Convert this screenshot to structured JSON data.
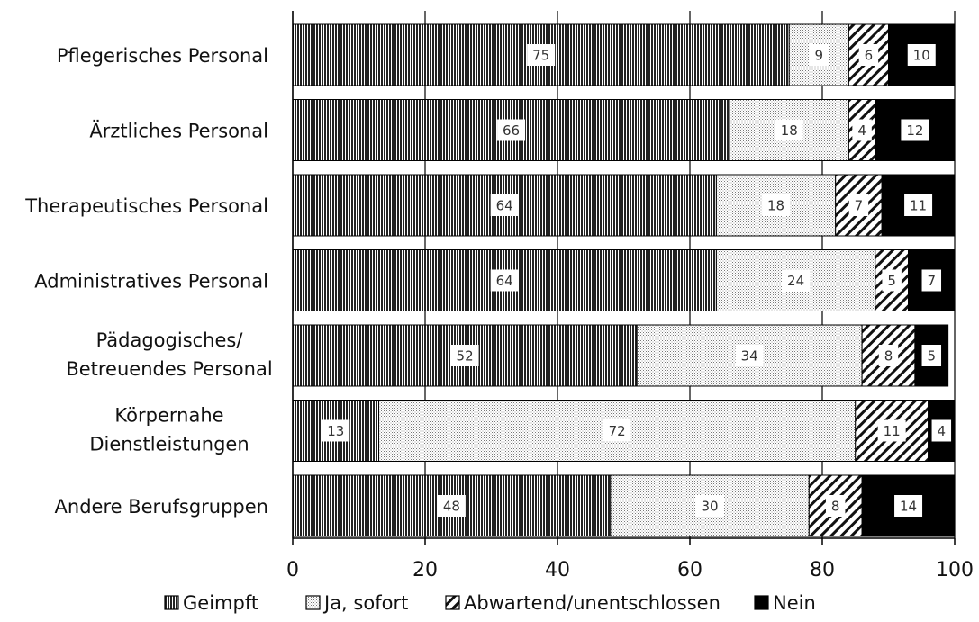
{
  "chart_data": {
    "type": "bar",
    "orientation": "horizontal",
    "stacked": true,
    "categories": [
      [
        "Pflegerisches Personal"
      ],
      [
        "Ärztliches Personal"
      ],
      [
        "Therapeutisches Personal"
      ],
      [
        "Administratives Personal"
      ],
      [
        "Pädagogisches/",
        "Betreuendes Personal"
      ],
      [
        "Körpernahe",
        "Dienstleistungen"
      ],
      [
        "Andere Berufsgruppen"
      ]
    ],
    "series": [
      {
        "name": "Geimpft",
        "pattern": "vertical-lines",
        "values": [
          75,
          66,
          64,
          64,
          52,
          13,
          48
        ]
      },
      {
        "name": "Ja, sofort",
        "pattern": "dots",
        "values": [
          9,
          18,
          18,
          24,
          34,
          72,
          30
        ]
      },
      {
        "name": "Abwartend/unentschlossen",
        "pattern": "diagonal-lines",
        "values": [
          6,
          4,
          7,
          5,
          8,
          11,
          8
        ]
      },
      {
        "name": "Nein",
        "pattern": "solid-black",
        "values": [
          10,
          12,
          11,
          7,
          5,
          4,
          14
        ]
      }
    ],
    "xlim": [
      0,
      100
    ],
    "xticks": [
      0,
      20,
      40,
      60,
      80,
      100
    ],
    "grid": "vertical",
    "legend": "bottom",
    "title": "",
    "xlabel": "",
    "ylabel": ""
  }
}
